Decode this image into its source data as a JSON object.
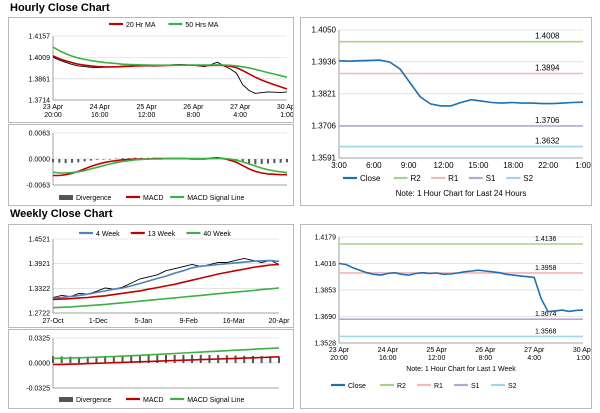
{
  "sections": {
    "hourly_title": "Hourly Close Chart",
    "weekly_title": "Weekly Close Chart"
  },
  "colors": {
    "ma20": "#c00000",
    "ma50": "#3cb043",
    "close_blue": "#1f6fb5",
    "r2": "#a9d18e",
    "r1": "#f4b6b6",
    "s1": "#b4a7d6",
    "s2": "#9fd5e8",
    "divergence": "#555555",
    "macd": "#c00000",
    "signal": "#3cb043",
    "wk4": "#4f81bd",
    "wk13": "#c00000",
    "wk40": "#3cb043"
  },
  "chart_data": [
    {
      "id": "hourly_price",
      "type": "line",
      "legend": [
        "20 Hr MA",
        "50 Hrs MA"
      ],
      "ylim": [
        1.3714,
        1.4157
      ],
      "yticks": [
        "1.4157",
        "1.4009",
        "1.3861",
        "1.3714"
      ],
      "xticks": [
        "23 Apr\n20:00",
        "24 Apr\n16:00",
        "25 Apr\n12:00",
        "26 Apr\n8:00",
        "27 Apr\n4:00",
        "30 Apr\n1:00"
      ],
      "xticks_top": [
        "23 Apr",
        "24 Apr",
        "25 Apr",
        "26 Apr",
        "27 Apr",
        "30 Apr"
      ],
      "xticks_bottom": [
        "20:00",
        "16:00",
        "12:00",
        "8:00",
        "4:00",
        "1:00"
      ],
      "series": [
        {
          "name": "Close",
          "values": [
            1.401,
            1.399,
            1.3975,
            1.396,
            1.395,
            1.3945,
            1.394,
            1.3938,
            1.394,
            1.3942,
            1.3945,
            1.3948,
            1.395,
            1.3955,
            1.3955,
            1.395,
            1.3948,
            1.395,
            1.3955,
            1.3958,
            1.396,
            1.3958,
            1.3955,
            1.395,
            1.3945,
            1.396,
            1.3975,
            1.395,
            1.393,
            1.39,
            1.382,
            1.378,
            1.376,
            1.3765,
            1.377,
            1.3768,
            1.3765,
            1.377
          ]
        },
        {
          "name": "20 Hr MA",
          "values": [
            1.402,
            1.4,
            1.3985,
            1.3972,
            1.3962,
            1.3955,
            1.395,
            1.3946,
            1.3944,
            1.3943,
            1.3944,
            1.3945,
            1.3947,
            1.3949,
            1.3951,
            1.3952,
            1.3952,
            1.3952,
            1.3953,
            1.3954,
            1.3955,
            1.3955,
            1.3955,
            1.3954,
            1.3952,
            1.3953,
            1.3955,
            1.3953,
            1.3948,
            1.3938,
            1.3918,
            1.3895,
            1.3872,
            1.3852,
            1.3835,
            1.382,
            1.3805,
            1.379
          ]
        },
        {
          "name": "50 Hrs MA",
          "values": [
            1.408,
            1.4055,
            1.4035,
            1.4018,
            1.4005,
            1.3995,
            1.3987,
            1.398,
            1.3974,
            1.397,
            1.3966,
            1.3962,
            1.396,
            1.3958,
            1.3957,
            1.3956,
            1.3955,
            1.3955,
            1.3955,
            1.3955,
            1.3955,
            1.3955,
            1.3956,
            1.3956,
            1.3956,
            1.3956,
            1.3957,
            1.3956,
            1.3954,
            1.395,
            1.3944,
            1.3936,
            1.3926,
            1.3915,
            1.3904,
            1.3893,
            1.3882,
            1.3872
          ]
        }
      ]
    },
    {
      "id": "hourly_macd",
      "type": "line",
      "legend": [
        "Divergence",
        "MACD",
        "MACD Signal Line"
      ],
      "ylim": [
        -0.0063,
        0.0063
      ],
      "yticks": [
        "0.0063",
        "0.0000",
        "-0.0063"
      ],
      "series": [
        {
          "name": "Divergence",
          "values": [
            -0.0008,
            -0.0009,
            -0.001,
            -0.0009,
            -0.0008,
            -0.0006,
            -0.0004,
            -0.0002,
            -0.0001,
            0.0,
            0.0001,
            0.0002,
            0.0002,
            0.0003,
            0.0003,
            0.0003,
            0.0003,
            0.0002,
            0.0002,
            0.0002,
            0.0001,
            0.0001,
            0.0,
            0.0,
            -0.0001,
            0.0001,
            0.0002,
            0.0,
            -0.0002,
            -0.0004,
            -0.0008,
            -0.0012,
            -0.0013,
            -0.0012,
            -0.0011,
            -0.001,
            -0.0009,
            -0.0008
          ]
        },
        {
          "name": "MACD",
          "values": [
            -0.004,
            -0.004,
            -0.0038,
            -0.0035,
            -0.003,
            -0.0024,
            -0.0018,
            -0.0013,
            -0.0009,
            -0.0006,
            -0.0004,
            -0.0002,
            -0.0001,
            0.0,
            0.0,
            0.0,
            0.0001,
            0.0001,
            0.0001,
            0.0001,
            0.0001,
            0.0001,
            0.0,
            0.0,
            0.0,
            0.0002,
            0.0003,
            0.0001,
            -0.0003,
            -0.0008,
            -0.0016,
            -0.0024,
            -0.003,
            -0.0034,
            -0.0036,
            -0.0037,
            -0.0038,
            -0.0038
          ]
        },
        {
          "name": "MACD Signal Line",
          "values": [
            -0.0032,
            -0.0034,
            -0.0034,
            -0.0033,
            -0.0031,
            -0.0028,
            -0.0024,
            -0.002,
            -0.0016,
            -0.0012,
            -0.0009,
            -0.0006,
            -0.0004,
            -0.0002,
            -0.0001,
            0.0,
            0.0,
            0.0,
            0.0001,
            0.0001,
            0.0001,
            0.0001,
            0.0001,
            0.0001,
            0.0001,
            0.0001,
            0.0001,
            0.0001,
            0.0,
            -0.0003,
            -0.0007,
            -0.0012,
            -0.0017,
            -0.0022,
            -0.0026,
            -0.0029,
            -0.0031,
            -0.0033
          ]
        }
      ]
    },
    {
      "id": "hourly_24h",
      "type": "line",
      "legend": [
        "Close",
        "R2",
        "R1",
        "S1",
        "S2"
      ],
      "note": "Note: 1 Hour Chart for Last 24 Hours",
      "ylim": [
        1.3591,
        1.405
      ],
      "yticks": [
        "1.4050",
        "1.3936",
        "1.3821",
        "1.3706",
        "1.3591"
      ],
      "xticks": [
        "3:00",
        "6:00",
        "9:00",
        "12:00",
        "15:00",
        "18:00",
        "22:00",
        "1:00"
      ],
      "levels": [
        {
          "name": "R2",
          "value": 1.4008,
          "label": "1.4008"
        },
        {
          "name": "R1",
          "value": 1.3894,
          "label": "1.3894"
        },
        {
          "name": "S1",
          "value": 1.3706,
          "label": "1.3706"
        },
        {
          "name": "S2",
          "value": 1.3632,
          "label": "1.3632"
        }
      ],
      "series": [
        {
          "name": "Close",
          "values": [
            1.394,
            1.3938,
            1.394,
            1.3941,
            1.3942,
            1.3935,
            1.391,
            1.386,
            1.381,
            1.3785,
            1.3778,
            1.3778,
            1.379,
            1.38,
            1.3795,
            1.379,
            1.3788,
            1.379,
            1.3788,
            1.3788,
            1.3786,
            1.3786,
            1.3788,
            1.379,
            1.3791
          ]
        }
      ]
    },
    {
      "id": "weekly_price",
      "type": "line",
      "legend": [
        "4 Week",
        "13 Week",
        "40 Week"
      ],
      "ylim": [
        1.2722,
        1.4521
      ],
      "yticks": [
        "1.4521",
        "1.3921",
        "1.3322",
        "1.2722"
      ],
      "xticks": [
        "27-Oct",
        "1-Dec",
        "5-Jan",
        "9-Feb",
        "16-Mar",
        "20-Apr"
      ],
      "series": [
        {
          "name": "Close",
          "values": [
            1.31,
            1.315,
            1.312,
            1.32,
            1.318,
            1.325,
            1.333,
            1.33,
            1.335,
            1.345,
            1.355,
            1.36,
            1.365,
            1.375,
            1.38,
            1.385,
            1.39,
            1.385,
            1.39,
            1.395,
            1.395,
            1.4,
            1.405,
            1.4,
            1.395,
            1.4,
            1.39
          ]
        },
        {
          "name": "4 Week",
          "values": [
            1.308,
            1.31,
            1.312,
            1.315,
            1.318,
            1.322,
            1.326,
            1.33,
            1.333,
            1.338,
            1.344,
            1.35,
            1.356,
            1.362,
            1.369,
            1.375,
            1.382,
            1.386,
            1.388,
            1.39,
            1.392,
            1.394,
            1.396,
            1.398,
            1.399,
            1.3995,
            1.398
          ]
        },
        {
          "name": "13 Week",
          "values": [
            1.305,
            1.306,
            1.307,
            1.309,
            1.31,
            1.312,
            1.314,
            1.317,
            1.32,
            1.323,
            1.326,
            1.33,
            1.334,
            1.338,
            1.342,
            1.347,
            1.352,
            1.357,
            1.362,
            1.367,
            1.371,
            1.375,
            1.379,
            1.383,
            1.386,
            1.389,
            1.39
          ]
        },
        {
          "name": "40 Week",
          "values": [
            1.285,
            1.286,
            1.287,
            1.2885,
            1.29,
            1.2915,
            1.293,
            1.295,
            1.297,
            1.299,
            1.301,
            1.303,
            1.305,
            1.307,
            1.309,
            1.311,
            1.313,
            1.315,
            1.317,
            1.319,
            1.321,
            1.323,
            1.325,
            1.327,
            1.329,
            1.331,
            1.333
          ]
        }
      ]
    },
    {
      "id": "weekly_macd",
      "type": "line",
      "legend": [
        "Divergence",
        "MACD",
        "MACD Signal Line"
      ],
      "ylim": [
        -0.0325,
        0.0325
      ],
      "yticks": [
        "0.0325",
        "0.0000",
        "-0.0325"
      ],
      "series": [
        {
          "name": "Divergence",
          "values": [
            0.009,
            0.0085,
            0.0082,
            0.008,
            0.0082,
            0.0085,
            0.0088,
            0.009,
            0.0092,
            0.0095,
            0.0098,
            0.01,
            0.0102,
            0.0104,
            0.0105,
            0.0106,
            0.0107,
            0.0106,
            0.0105,
            0.0103,
            0.01,
            0.0098,
            0.0095,
            0.0092,
            0.009,
            0.0088,
            0.0085
          ]
        },
        {
          "name": "MACD",
          "values": [
            -0.002,
            -0.0018,
            -0.0015,
            -0.0012,
            -0.0008,
            -0.0004,
            0.0,
            0.0004,
            0.0008,
            0.0012,
            0.0016,
            0.002,
            0.0024,
            0.0028,
            0.0032,
            0.0036,
            0.004,
            0.0044,
            0.0048,
            0.0052,
            0.0056,
            0.006,
            0.0064,
            0.0068,
            0.0072,
            0.0076,
            0.008
          ]
        },
        {
          "name": "MACD Signal Line",
          "values": [
            0.006,
            0.0062,
            0.0065,
            0.0068,
            0.0072,
            0.0076,
            0.008,
            0.0085,
            0.009,
            0.0095,
            0.01,
            0.0106,
            0.0112,
            0.0118,
            0.0124,
            0.013,
            0.0136,
            0.0142,
            0.0148,
            0.0154,
            0.016,
            0.0166,
            0.0172,
            0.0178,
            0.0184,
            0.019,
            0.0196
          ]
        }
      ]
    },
    {
      "id": "weekly_week",
      "type": "line",
      "legend": [
        "Close",
        "R2",
        "R1",
        "S1",
        "S2"
      ],
      "note": "Note: 1 Hour Chart for Last 1 Week",
      "ylim": [
        1.3528,
        1.4179
      ],
      "yticks": [
        "1.4179",
        "1.4016",
        "1.3853",
        "1.3690",
        "1.3528"
      ],
      "xticks": [
        "23 Apr\n20:00",
        "24 Apr\n16:00",
        "25 Apr\n12:00",
        "26 Apr\n8:00",
        "27 Apr\n4:00",
        "30 Apr\n1:00"
      ],
      "xticks_top": [
        "23 Apr",
        "24 Apr",
        "25 Apr",
        "26 Apr",
        "27 Apr",
        "30 Apr"
      ],
      "xticks_bottom": [
        "20:00",
        "16:00",
        "12:00",
        "8:00",
        "4:00",
        "1:00"
      ],
      "levels": [
        {
          "name": "R2",
          "value": 1.4136,
          "label": "1.4136"
        },
        {
          "name": "R1",
          "value": 1.3958,
          "label": "1.3958"
        },
        {
          "name": "S1",
          "value": 1.3674,
          "label": "1.3674"
        },
        {
          "name": "S2",
          "value": 1.3568,
          "label": "1.3568"
        }
      ],
      "series": [
        {
          "name": "Close",
          "values": [
            1.4016,
            1.401,
            1.399,
            1.3975,
            1.396,
            1.395,
            1.3945,
            1.3955,
            1.396,
            1.395,
            1.3945,
            1.3955,
            1.396,
            1.3955,
            1.3958,
            1.395,
            1.3952,
            1.3958,
            1.3965,
            1.397,
            1.3975,
            1.397,
            1.3965,
            1.396,
            1.395,
            1.3945,
            1.394,
            1.3935,
            1.393,
            1.38,
            1.372,
            1.3725,
            1.373,
            1.3722,
            1.3728,
            1.373
          ]
        }
      ]
    }
  ]
}
